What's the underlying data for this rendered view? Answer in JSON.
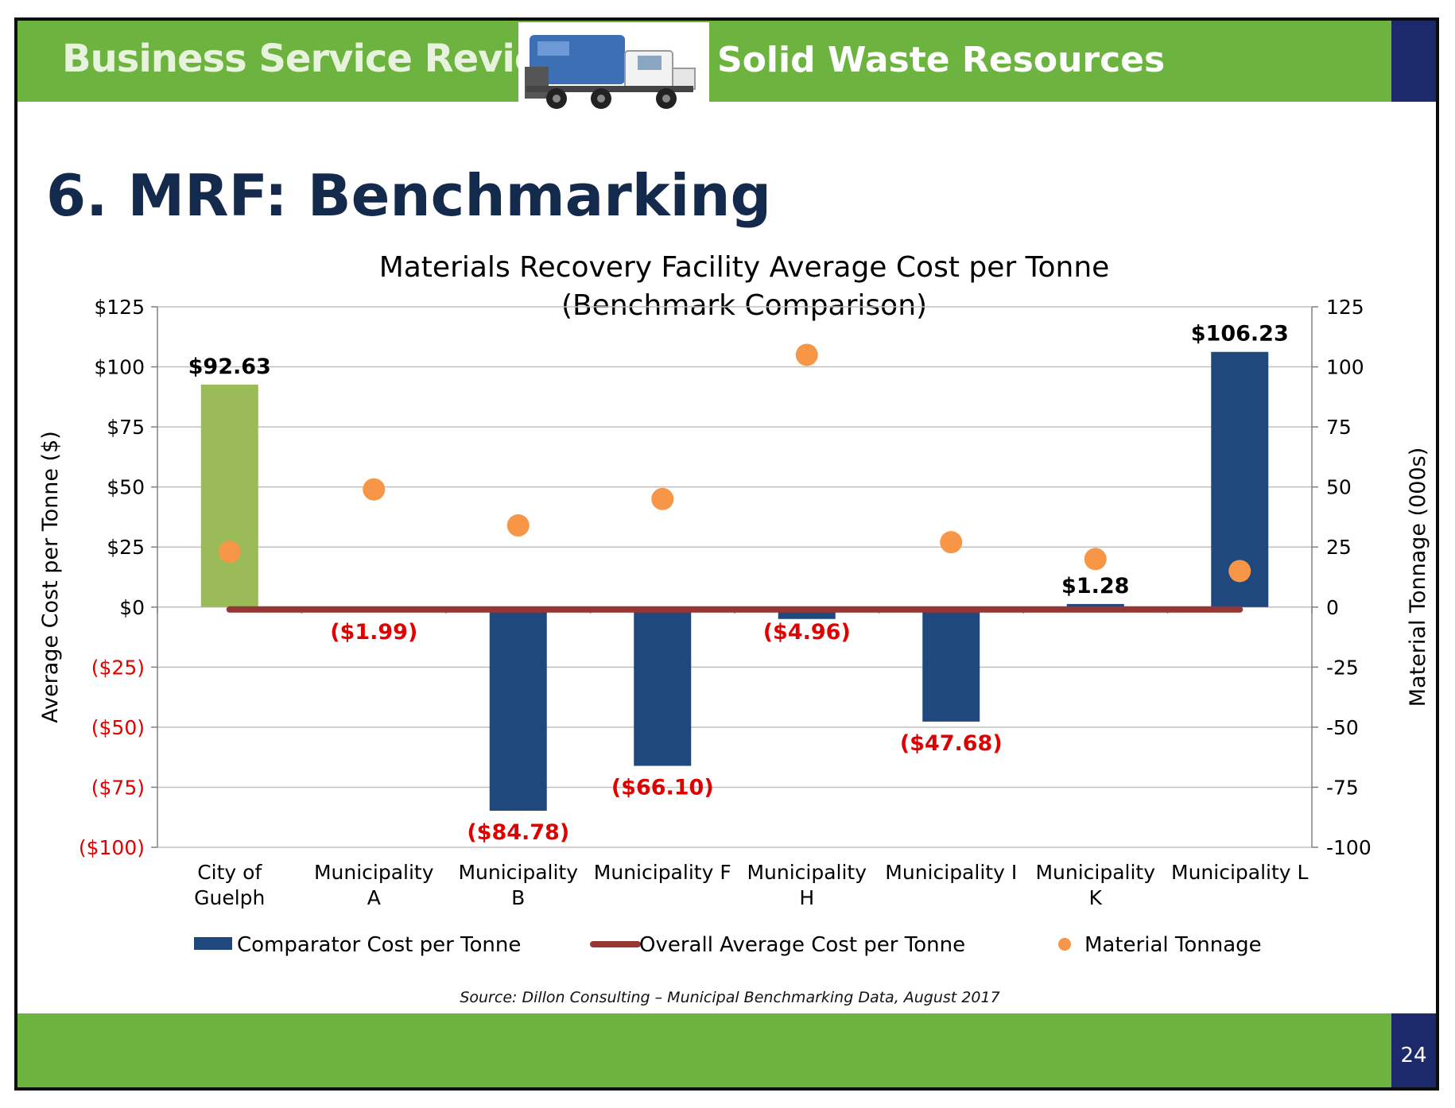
{
  "header": {
    "title": "Business Service Review",
    "subtitle": "Solid Waste Resources"
  },
  "page_title": "6. MRF: Benchmarking",
  "source": "Source: Dillon Consulting – Municipal Benchmarking Data, August 2017",
  "page_number": "24",
  "colors": {
    "header_green": "#6cb33f",
    "accent_navy": "#1c2a6b",
    "guelph_bar": "#9bbb59",
    "comparator_bar": "#1f497d",
    "average_line": "#953735",
    "tonnage_dot": "#f79646",
    "negative_label": "#e00000",
    "title_navy": "#142a4c"
  },
  "chart_data": {
    "type": "bar",
    "title": "Materials Recovery Facility Average Cost per Tonne",
    "subtitle": "(Benchmark Comparison)",
    "ylabel": "Average Cost per Tonne ($)",
    "y2label": "Material Tonnage (000s)",
    "ylim": [
      -100,
      125
    ],
    "y2lim": [
      -100,
      125
    ],
    "yticks": [
      125,
      100,
      75,
      50,
      25,
      0,
      -25,
      -50,
      -75,
      -100
    ],
    "ytick_labels": [
      "$125",
      "$100",
      "$75",
      "$50",
      "$25",
      "$0",
      "($25)",
      "($50)",
      "($75)",
      "($100)"
    ],
    "y2tick_labels": [
      "125",
      "100",
      "75",
      "50",
      "25",
      "0",
      "-25",
      "-50",
      "-75",
      "-100"
    ],
    "grid": true,
    "legend_position": "bottom",
    "categories": [
      [
        "City of",
        "Guelph"
      ],
      [
        "Municipality",
        "A"
      ],
      [
        "Municipality",
        "B"
      ],
      [
        "Municipality F"
      ],
      [
        "Municipality",
        "H"
      ],
      [
        "Municipality I"
      ],
      [
        "Municipality",
        "K"
      ],
      [
        "Municipality L"
      ]
    ],
    "series": [
      {
        "name": "Comparator Cost per Tonne",
        "type": "bar",
        "values": [
          92.63,
          -1.99,
          -84.78,
          -66.1,
          -4.96,
          -47.68,
          1.28,
          106.23
        ],
        "labels": [
          "$92.63",
          "($1.99)",
          "($84.78)",
          "($66.10)",
          "($4.96)",
          "($47.68)",
          "$1.28",
          "$106.23"
        ]
      },
      {
        "name": "Overall Average Cost per Tonne",
        "type": "line",
        "values": [
          0,
          0,
          0,
          0,
          0,
          0,
          0,
          0
        ]
      },
      {
        "name": "Material Tonnage",
        "type": "scatter",
        "axis": "right",
        "values": [
          23,
          49,
          34,
          45,
          105,
          27,
          20,
          15
        ]
      }
    ]
  }
}
